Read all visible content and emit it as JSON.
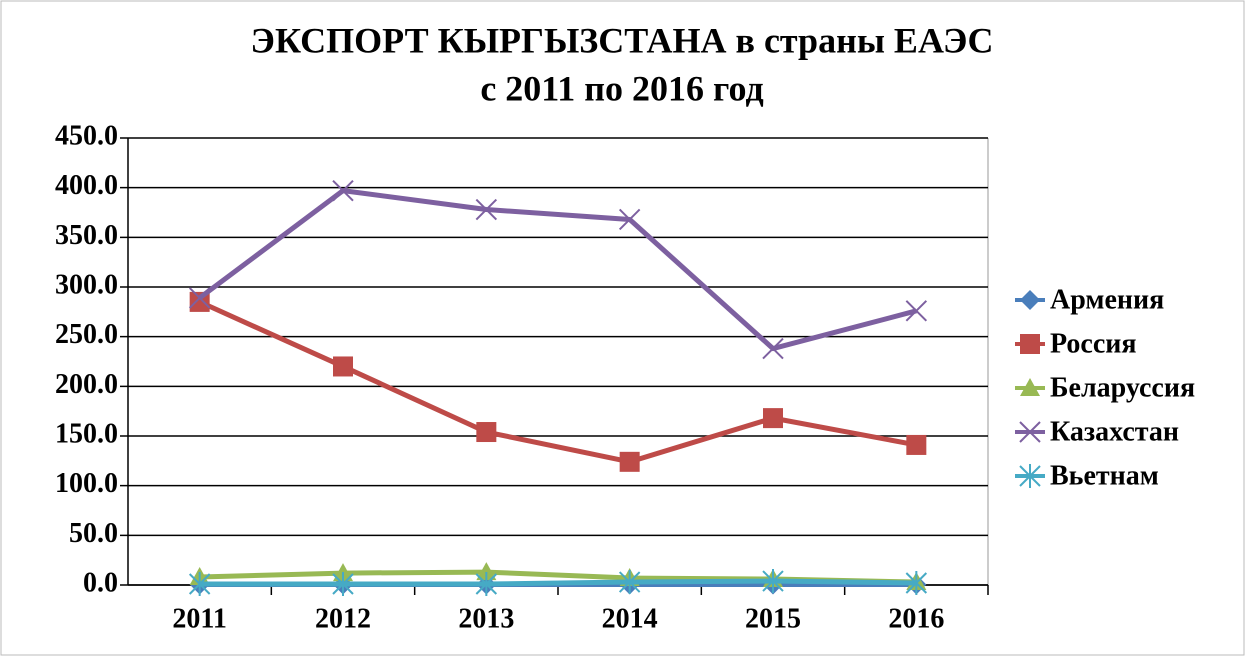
{
  "chart_data": {
    "type": "line",
    "title": [
      "ЭКСПОРТ КЫРГЫЗСТАНА в страны ЕАЭС",
      "с 2011 по 2016 год"
    ],
    "categories": [
      "2011",
      "2012",
      "2013",
      "2014",
      "2015",
      "2016"
    ],
    "series": [
      {
        "name": "Армения",
        "color": "#4a7ebb",
        "marker": "diamond",
        "values": [
          0.5,
          0.5,
          0.5,
          0.5,
          0.5,
          0.5
        ]
      },
      {
        "name": "Россия",
        "color": "#be4b48",
        "marker": "square",
        "values": [
          285,
          220,
          154,
          124,
          168,
          141
        ]
      },
      {
        "name": "Беларуссия",
        "color": "#98b954",
        "marker": "triangle",
        "values": [
          8,
          12,
          13,
          7,
          6,
          3
        ]
      },
      {
        "name": "Казахстан",
        "color": "#7d60a0",
        "marker": "x",
        "values": [
          289,
          397,
          378,
          368,
          238,
          276
        ]
      },
      {
        "name": "Вьетнам",
        "color": "#46aac5",
        "marker": "star",
        "values": [
          1,
          1,
          1,
          3,
          4,
          2
        ]
      }
    ],
    "ylim": [
      0,
      450
    ],
    "yticks": [
      {
        "value": 0,
        "label": "0.0"
      },
      {
        "value": 50,
        "label": "50.0"
      },
      {
        "value": 100,
        "label": "100.0"
      },
      {
        "value": 150,
        "label": "150.0"
      },
      {
        "value": 200,
        "label": "200.0"
      },
      {
        "value": 250,
        "label": "250.0"
      },
      {
        "value": 300,
        "label": "300.0"
      },
      {
        "value": 350,
        "label": "350.0"
      },
      {
        "value": 400,
        "label": "400.0"
      },
      {
        "value": 450,
        "label": "450.0"
      }
    ],
    "grid": true,
    "legend": "right"
  }
}
